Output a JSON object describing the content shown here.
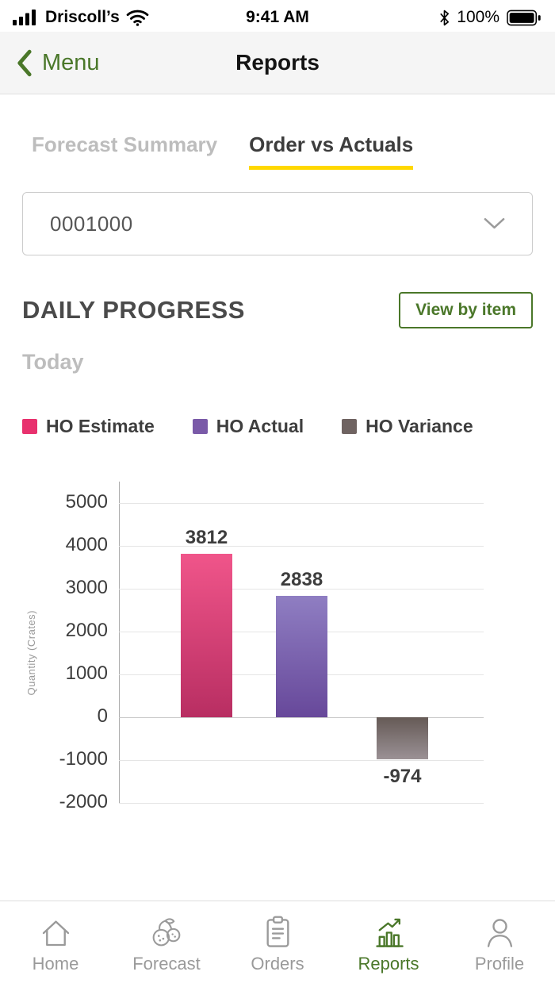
{
  "colors": {
    "accent_green": "#4a7729",
    "tab_underline_yellow": "#ffd800",
    "estimate_pink": "#e8316e",
    "actual_purple": "#7a5aa8",
    "variance_gray": "#6f6361"
  },
  "status_bar": {
    "carrier": "Driscoll’s",
    "time": "9:41 AM",
    "battery_percent": "100%"
  },
  "nav": {
    "back_label": "Menu",
    "title": "Reports"
  },
  "tabs": [
    {
      "label": "Forecast Summary",
      "active": false
    },
    {
      "label": "Order vs Actuals",
      "active": true
    }
  ],
  "filter_dropdown": {
    "selected_value": "0001000"
  },
  "daily_progress": {
    "title": "DAILY PROGRESS",
    "view_by_item_button": "View by item",
    "subtitle": "Today"
  },
  "legend": [
    {
      "label": "HO Estimate",
      "color": "#e8316e"
    },
    {
      "label": "HO Actual",
      "color": "#7a5aa8"
    },
    {
      "label": "HO Variance",
      "color": "#6f6361"
    }
  ],
  "chart_data": {
    "type": "bar",
    "title": "Daily Progress - Today",
    "categories": [
      "HO Estimate",
      "HO Actual",
      "HO Variance"
    ],
    "values": [
      3812,
      2838,
      -974
    ],
    "xlabel": "",
    "ylabel": "Quantity (Crates)",
    "ylim": [
      -2000,
      5000
    ],
    "yticks": [
      5000,
      4000,
      3000,
      2000,
      1000,
      0,
      -1000,
      -2000
    ],
    "grid": true,
    "legend_position": "top",
    "bar_gradients": [
      [
        "#f0558a",
        "#b82e62"
      ],
      [
        "#8f7ec2",
        "#67489a"
      ],
      [
        "#655a56",
        "#9b9195"
      ]
    ]
  },
  "tab_bar": {
    "items": [
      {
        "label": "Home",
        "active": false
      },
      {
        "label": "Forecast",
        "active": false
      },
      {
        "label": "Orders",
        "active": false
      },
      {
        "label": "Reports",
        "active": true
      },
      {
        "label": "Profile",
        "active": false
      }
    ]
  }
}
